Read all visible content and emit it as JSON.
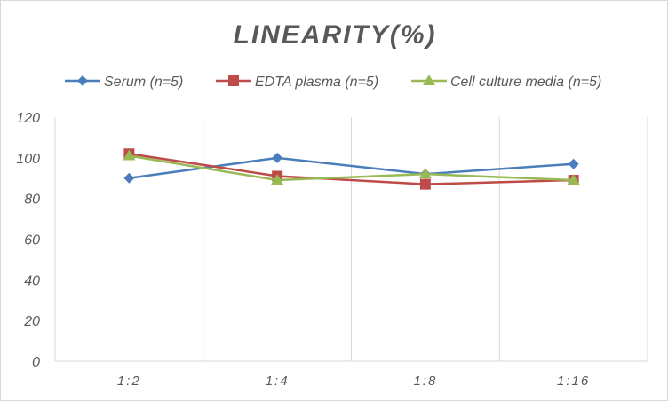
{
  "chart_data": {
    "type": "line",
    "title": "LINEARITY(%)",
    "categories": [
      "1:2",
      "1:4",
      "1:8",
      "1:16"
    ],
    "ylim": [
      0,
      120
    ],
    "yticks": [
      "0",
      "20",
      "40",
      "60",
      "80",
      "100",
      "120"
    ],
    "grid": "vertical",
    "legend_position": "top",
    "series": [
      {
        "name": "Serum (n=5)",
        "values": [
          90,
          100,
          92,
          97
        ],
        "color": "#4a7ebb",
        "marker": "diamond"
      },
      {
        "name": "EDTA plasma (n=5)",
        "values": [
          102,
          91,
          87,
          89
        ],
        "color": "#be4b48",
        "marker": "square"
      },
      {
        "name": "Cell culture media (n=5)",
        "values": [
          101,
          89,
          92,
          89
        ],
        "color": "#98b954",
        "marker": "triangle"
      }
    ]
  }
}
